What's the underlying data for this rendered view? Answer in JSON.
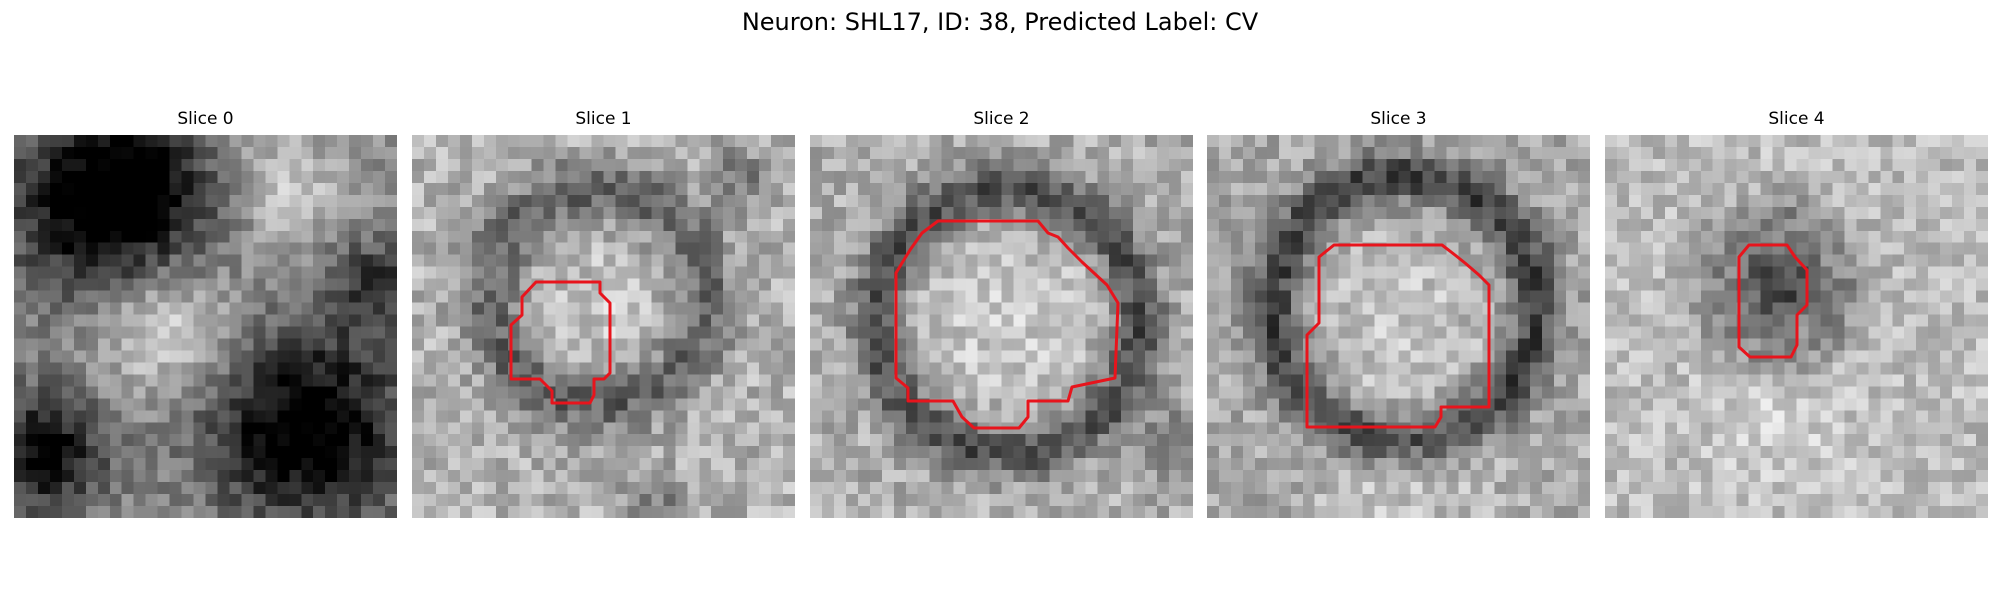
{
  "figure": {
    "title": "Neuron: SHL17, ID: 38, Predicted Label: CV"
  },
  "slices": [
    {
      "title": "Slice 0",
      "has_contour": false
    },
    {
      "title": "Slice 1",
      "has_contour": true
    },
    {
      "title": "Slice 2",
      "has_contour": true
    },
    {
      "title": "Slice 3",
      "has_contour": true
    },
    {
      "title": "Slice 4",
      "has_contour": true
    }
  ],
  "colors": {
    "contour": "#e8141c",
    "background": "#ffffff"
  }
}
